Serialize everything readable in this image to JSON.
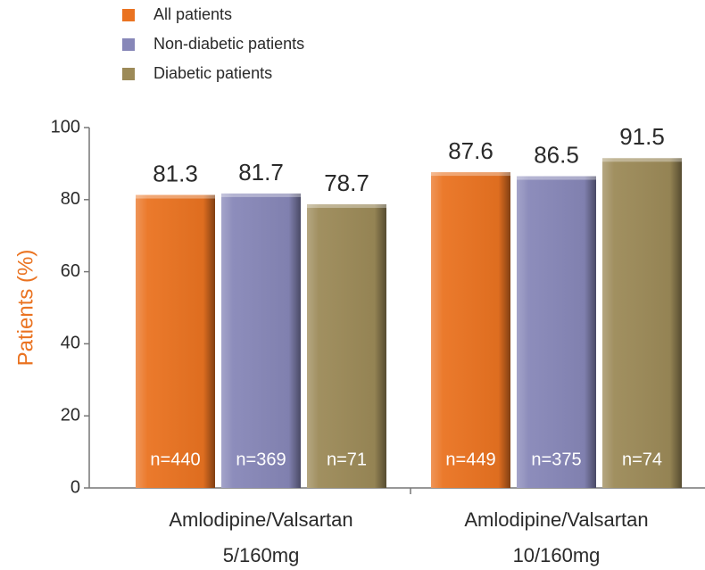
{
  "chart_data": {
    "type": "bar",
    "y_label": "Patients (%)",
    "categories": [
      [
        "Amlodipine/Valsartan",
        "5/160mg"
      ],
      [
        "Amlodipine/Valsartan",
        "10/160mg"
      ]
    ],
    "series": [
      {
        "name": "All patients",
        "color": "#ea7321",
        "values": [
          81.3,
          87.6
        ],
        "n_labels": [
          "n=440",
          "n=449"
        ]
      },
      {
        "name": "Non-diabetic patients",
        "color": "#8787b8",
        "values": [
          81.7,
          86.5
        ],
        "n_labels": [
          "n=369",
          "n=375"
        ]
      },
      {
        "name": "Diabetic patients",
        "color": "#9c8a58",
        "values": [
          78.7,
          91.5
        ],
        "n_labels": [
          "n=71",
          "n=74"
        ]
      }
    ],
    "ylim": [
      0,
      100
    ],
    "yticks": [
      0,
      20,
      40,
      60,
      80,
      100
    ],
    "grid": false
  }
}
